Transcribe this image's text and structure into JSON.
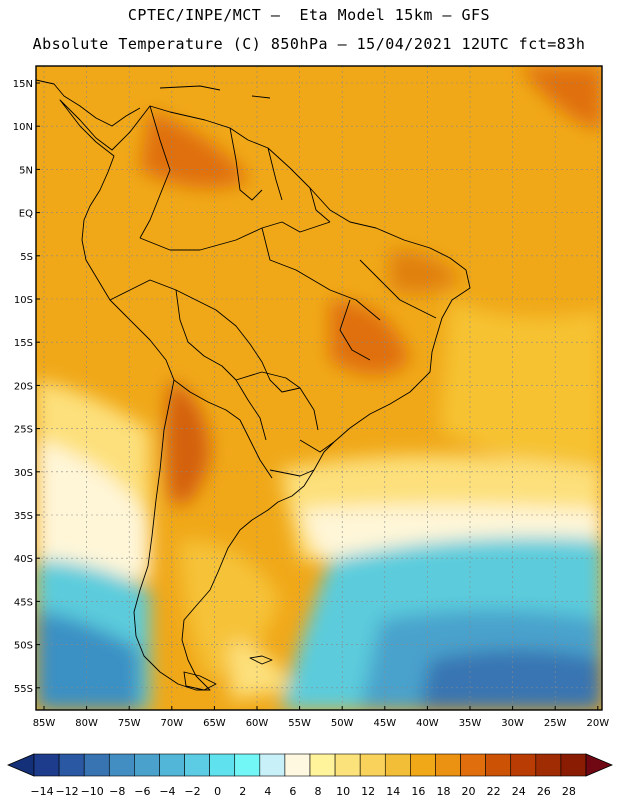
{
  "header": {
    "title_line1": "CPTEC/INPE/MCT –  Eta Model 15km – GFS",
    "title_line2": "Absolute Temperature (C) 850hPa – 15/04/2021 12UTC fct=83h"
  },
  "map": {
    "lat_labels": [
      "15N",
      "10N",
      "5N",
      "EQ",
      "5S",
      "10S",
      "15S",
      "20S",
      "25S",
      "30S",
      "35S",
      "40S",
      "45S",
      "50S",
      "55S"
    ],
    "lon_labels": [
      "85W",
      "80W",
      "75W",
      "70W",
      "65W",
      "60W",
      "55W",
      "50W",
      "45W",
      "40W",
      "35W",
      "30W",
      "25W",
      "20W"
    ],
    "region": "South America",
    "background_color": "#f0a818"
  },
  "colorbar": {
    "labels": [
      "-14",
      "-12",
      "-10",
      "-8",
      "-6",
      "-4",
      "-2",
      "0",
      "2",
      "4",
      "6",
      "8",
      "10",
      "12",
      "14",
      "16",
      "18",
      "20",
      "22",
      "24",
      "26",
      "28"
    ],
    "colors": [
      "#1e3c8c",
      "#2b58a2",
      "#3874b2",
      "#428ec2",
      "#4aa2cc",
      "#52b6d8",
      "#5ccce4",
      "#5fe2ee",
      "#72f6f6",
      "#c8f0f8",
      "#fff8e0",
      "#fff49c",
      "#fce27a",
      "#f8d25a",
      "#f2be38",
      "#f0a818",
      "#ec9212",
      "#e06e0c",
      "#cc5206",
      "#b83c04",
      "#a02c04",
      "#8a1c04"
    ],
    "arrow_left_color": "#143078",
    "arrow_right_color": "#700814"
  }
}
